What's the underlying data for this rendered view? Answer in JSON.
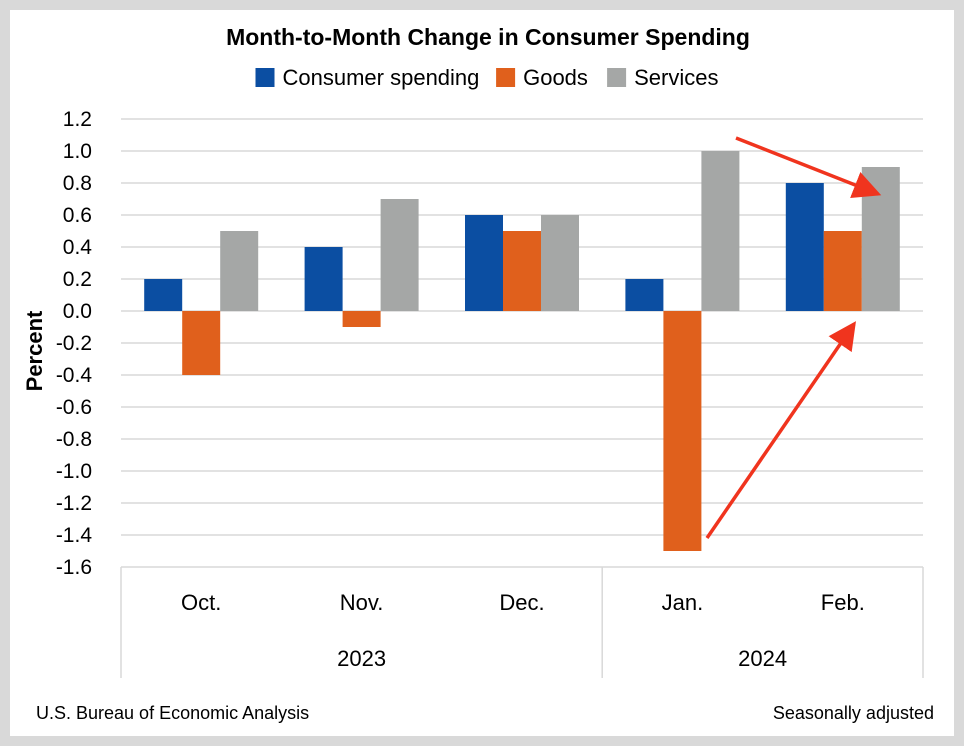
{
  "chart_data": {
    "type": "bar",
    "title": "Month-to-Month Change in Consumer Spending",
    "ylabel": "Percent",
    "xlabel": "",
    "ylim": [
      -1.6,
      1.2
    ],
    "yticks": [
      1.2,
      1.0,
      0.8,
      0.6,
      0.4,
      0.2,
      0.0,
      -0.2,
      -0.4,
      -0.6,
      -0.8,
      -1.0,
      -1.2,
      -1.4,
      -1.6
    ],
    "ytick_labels": [
      "1.2",
      "1.0",
      "0.8",
      "0.6",
      "0.4",
      "0.2",
      "0.0",
      "-0.2",
      "-0.4",
      "-0.6",
      "-0.8",
      "-1.0",
      "-1.2",
      "-1.4",
      "-1.6"
    ],
    "grid": true,
    "legend_position": "top",
    "categories": [
      "Oct.",
      "Nov.",
      "Dec.",
      "Jan.",
      "Feb."
    ],
    "year_groups": [
      {
        "label": "2023",
        "categories": [
          "Oct.",
          "Nov.",
          "Dec."
        ]
      },
      {
        "label": "2024",
        "categories": [
          "Jan.",
          "Feb."
        ]
      }
    ],
    "series": [
      {
        "name": "Consumer spending",
        "color": "#0b4ea2",
        "values": [
          0.2,
          0.4,
          0.6,
          0.2,
          0.8
        ]
      },
      {
        "name": "Goods",
        "color": "#e0601c",
        "values": [
          -0.4,
          -0.1,
          0.5,
          -1.5,
          0.5
        ]
      },
      {
        "name": "Services",
        "color": "#a5a7a6",
        "values": [
          0.5,
          0.7,
          0.6,
          1.0,
          0.9
        ]
      }
    ],
    "annotations": [
      {
        "type": "arrow",
        "color": "#f0341e",
        "description": "arrow pointing down to Feb. Services bar"
      },
      {
        "type": "arrow",
        "color": "#f0341e",
        "description": "arrow rising from Jan. Goods bar toward Feb. Goods bar"
      }
    ]
  },
  "footer": {
    "source": "U.S. Bureau of Economic Analysis",
    "note": "Seasonally adjusted"
  },
  "colors": {
    "background": "#ffffff",
    "border": "#d9d9d9",
    "grid": "#d9d9d9",
    "arrow": "#f0341e"
  }
}
